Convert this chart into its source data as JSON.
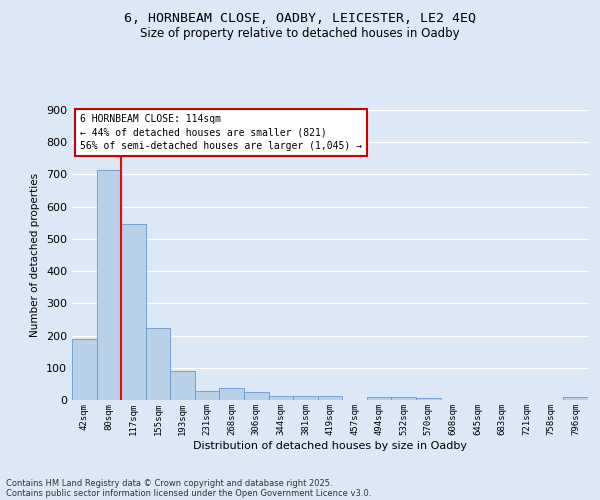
{
  "title_line1": "6, HORNBEAM CLOSE, OADBY, LEICESTER, LE2 4EQ",
  "title_line2": "Size of property relative to detached houses in Oadby",
  "xlabel": "Distribution of detached houses by size in Oadby",
  "ylabel": "Number of detached properties",
  "categories": [
    "42sqm",
    "80sqm",
    "117sqm",
    "155sqm",
    "193sqm",
    "231sqm",
    "268sqm",
    "306sqm",
    "344sqm",
    "381sqm",
    "419sqm",
    "457sqm",
    "494sqm",
    "532sqm",
    "570sqm",
    "608sqm",
    "645sqm",
    "683sqm",
    "721sqm",
    "758sqm",
    "796sqm"
  ],
  "bar_heights": [
    190,
    714,
    547,
    224,
    90,
    28,
    37,
    24,
    13,
    12,
    12,
    0,
    8,
    10,
    6,
    0,
    0,
    0,
    0,
    0,
    10
  ],
  "bar_color": "#b8d0e8",
  "bar_edge_color": "#6699cc",
  "ylim": [
    0,
    900
  ],
  "yticks": [
    0,
    100,
    200,
    300,
    400,
    500,
    600,
    700,
    800,
    900
  ],
  "red_line_x": 1.5,
  "annotation_text": "6 HORNBEAM CLOSE: 114sqm\n← 44% of detached houses are smaller (821)\n56% of semi-detached houses are larger (1,045) →",
  "annotation_box_color": "#ffffff",
  "annotation_border_color": "#cc0000",
  "footer_line1": "Contains HM Land Registry data © Crown copyright and database right 2025.",
  "footer_line2": "Contains public sector information licensed under the Open Government Licence v3.0.",
  "background_color": "#dce8f5",
  "plot_bg_color": "#dce8f5",
  "grid_color": "#ffffff",
  "title_fontsize": 9.5,
  "subtitle_fontsize": 8.5,
  "tick_fontsize": 6.5,
  "ylabel_fontsize": 7.5,
  "xlabel_fontsize": 8,
  "footer_fontsize": 6,
  "annot_fontsize": 7
}
